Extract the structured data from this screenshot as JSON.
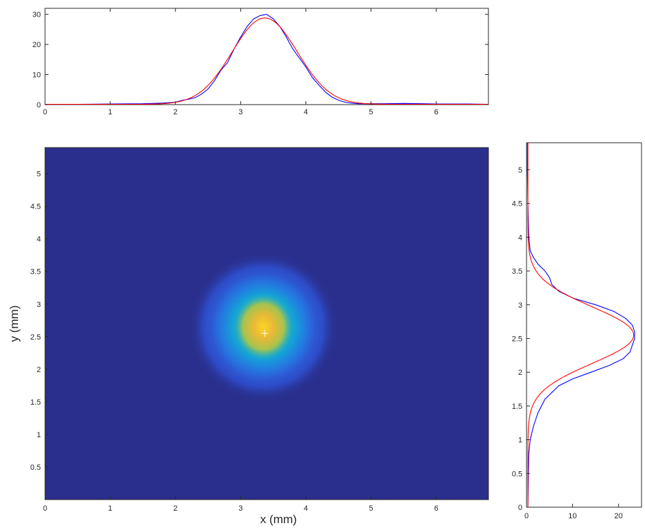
{
  "chart_data": [
    {
      "id": "top-profile",
      "type": "line",
      "xlabel": "",
      "ylabel": "",
      "xlim": [
        0,
        6.8
      ],
      "ylim": [
        0,
        32
      ],
      "xticks": [
        0,
        1,
        2,
        3,
        4,
        5,
        6
      ],
      "yticks": [
        0,
        10,
        20,
        30
      ],
      "grid": false,
      "series": [
        {
          "role": "measured",
          "color": "#0000ff",
          "x": [
            0,
            0.5,
            1.0,
            1.5,
            1.8,
            2.0,
            2.1,
            2.2,
            2.3,
            2.4,
            2.5,
            2.6,
            2.7,
            2.8,
            2.9,
            3.0,
            3.1,
            3.2,
            3.3,
            3.4,
            3.5,
            3.6,
            3.7,
            3.8,
            3.9,
            4.0,
            4.1,
            4.2,
            4.3,
            4.4,
            4.5,
            4.6,
            4.7,
            4.8,
            5.0,
            5.2,
            5.5,
            5.8,
            6.0,
            6.5,
            6.8
          ],
          "y": [
            0.1,
            0.1,
            0.2,
            0.3,
            0.5,
            0.8,
            1.4,
            1.8,
            2.3,
            3.5,
            5.2,
            8.0,
            11.5,
            14.0,
            18.5,
            22.5,
            26.0,
            28.5,
            29.6,
            30.0,
            28.5,
            26.0,
            22.5,
            18.5,
            15.5,
            12.5,
            9.0,
            6.5,
            4.2,
            2.5,
            1.5,
            0.8,
            0.5,
            0.3,
            0.3,
            0.3,
            0.4,
            0.3,
            0.2,
            0.2,
            0.1
          ]
        },
        {
          "role": "fit",
          "color": "#ff0000",
          "model": "gaussian",
          "amplitude": 28.7,
          "center": 3.37,
          "sigma": 0.5,
          "offset": 0.1
        }
      ]
    },
    {
      "id": "beam-image",
      "type": "heatmap",
      "xlabel": "x (mm)",
      "ylabel": "y (mm)",
      "xlim": [
        0,
        6.8
      ],
      "ylim": [
        0,
        5.4
      ],
      "xticks": [
        0,
        1,
        2,
        3,
        4,
        5,
        6
      ],
      "yticks": [
        0.5,
        1,
        1.5,
        2,
        2.5,
        3,
        3.5,
        4,
        4.5,
        5
      ],
      "colormap": "parula",
      "colors": [
        "#2a2f8d",
        "#2d4bc7",
        "#1f78e8",
        "#14a3d6",
        "#3cbca3",
        "#a6c34e",
        "#e9b935",
        "#fbd424"
      ],
      "background_color": "#2a2f8d",
      "beam": {
        "center": [
          3.35,
          2.65
        ],
        "halo_radius": [
          1.15,
          1.15
        ],
        "core_radius": [
          0.45,
          0.5
        ]
      },
      "centroid_marker": {
        "x": 3.37,
        "y": 2.55,
        "symbol": "+",
        "color": "#ffffff"
      }
    },
    {
      "id": "side-profile",
      "type": "line",
      "xlabel": "",
      "ylabel": "",
      "xlim": [
        0,
        25
      ],
      "ylim": [
        0,
        5.4
      ],
      "xticks": [
        0,
        10,
        20
      ],
      "yticks": [
        0,
        0.5,
        1,
        1.5,
        2,
        2.5,
        3,
        3.5,
        4,
        4.5,
        5
      ],
      "grid": false,
      "series": [
        {
          "role": "measured",
          "color": "#0000ff",
          "orientation": "vertical",
          "y": [
            0,
            0.5,
            0.8,
            1.0,
            1.2,
            1.4,
            1.6,
            1.8,
            1.9,
            2.0,
            2.1,
            2.2,
            2.3,
            2.4,
            2.5,
            2.6,
            2.7,
            2.8,
            2.9,
            3.0,
            3.1,
            3.2,
            3.3,
            3.4,
            3.5,
            3.6,
            3.7,
            3.8,
            4.0,
            4.2,
            4.5,
            5.0,
            5.4
          ],
          "x": [
            0.3,
            0.4,
            0.5,
            0.8,
            1.5,
            2.5,
            4.0,
            7.0,
            10.0,
            14.0,
            18.0,
            21.0,
            22.5,
            23.0,
            23.5,
            23.5,
            23.0,
            21.5,
            19.0,
            15.0,
            10.0,
            7.0,
            5.5,
            5.0,
            4.0,
            2.5,
            1.5,
            0.8,
            0.5,
            0.4,
            0.3,
            0.2,
            0.2
          ]
        },
        {
          "role": "fit",
          "color": "#ff0000",
          "model": "gaussian",
          "orientation": "vertical",
          "amplitude": 23.0,
          "center": 2.55,
          "sigma": 0.42,
          "offset": 0.3
        }
      ]
    }
  ]
}
